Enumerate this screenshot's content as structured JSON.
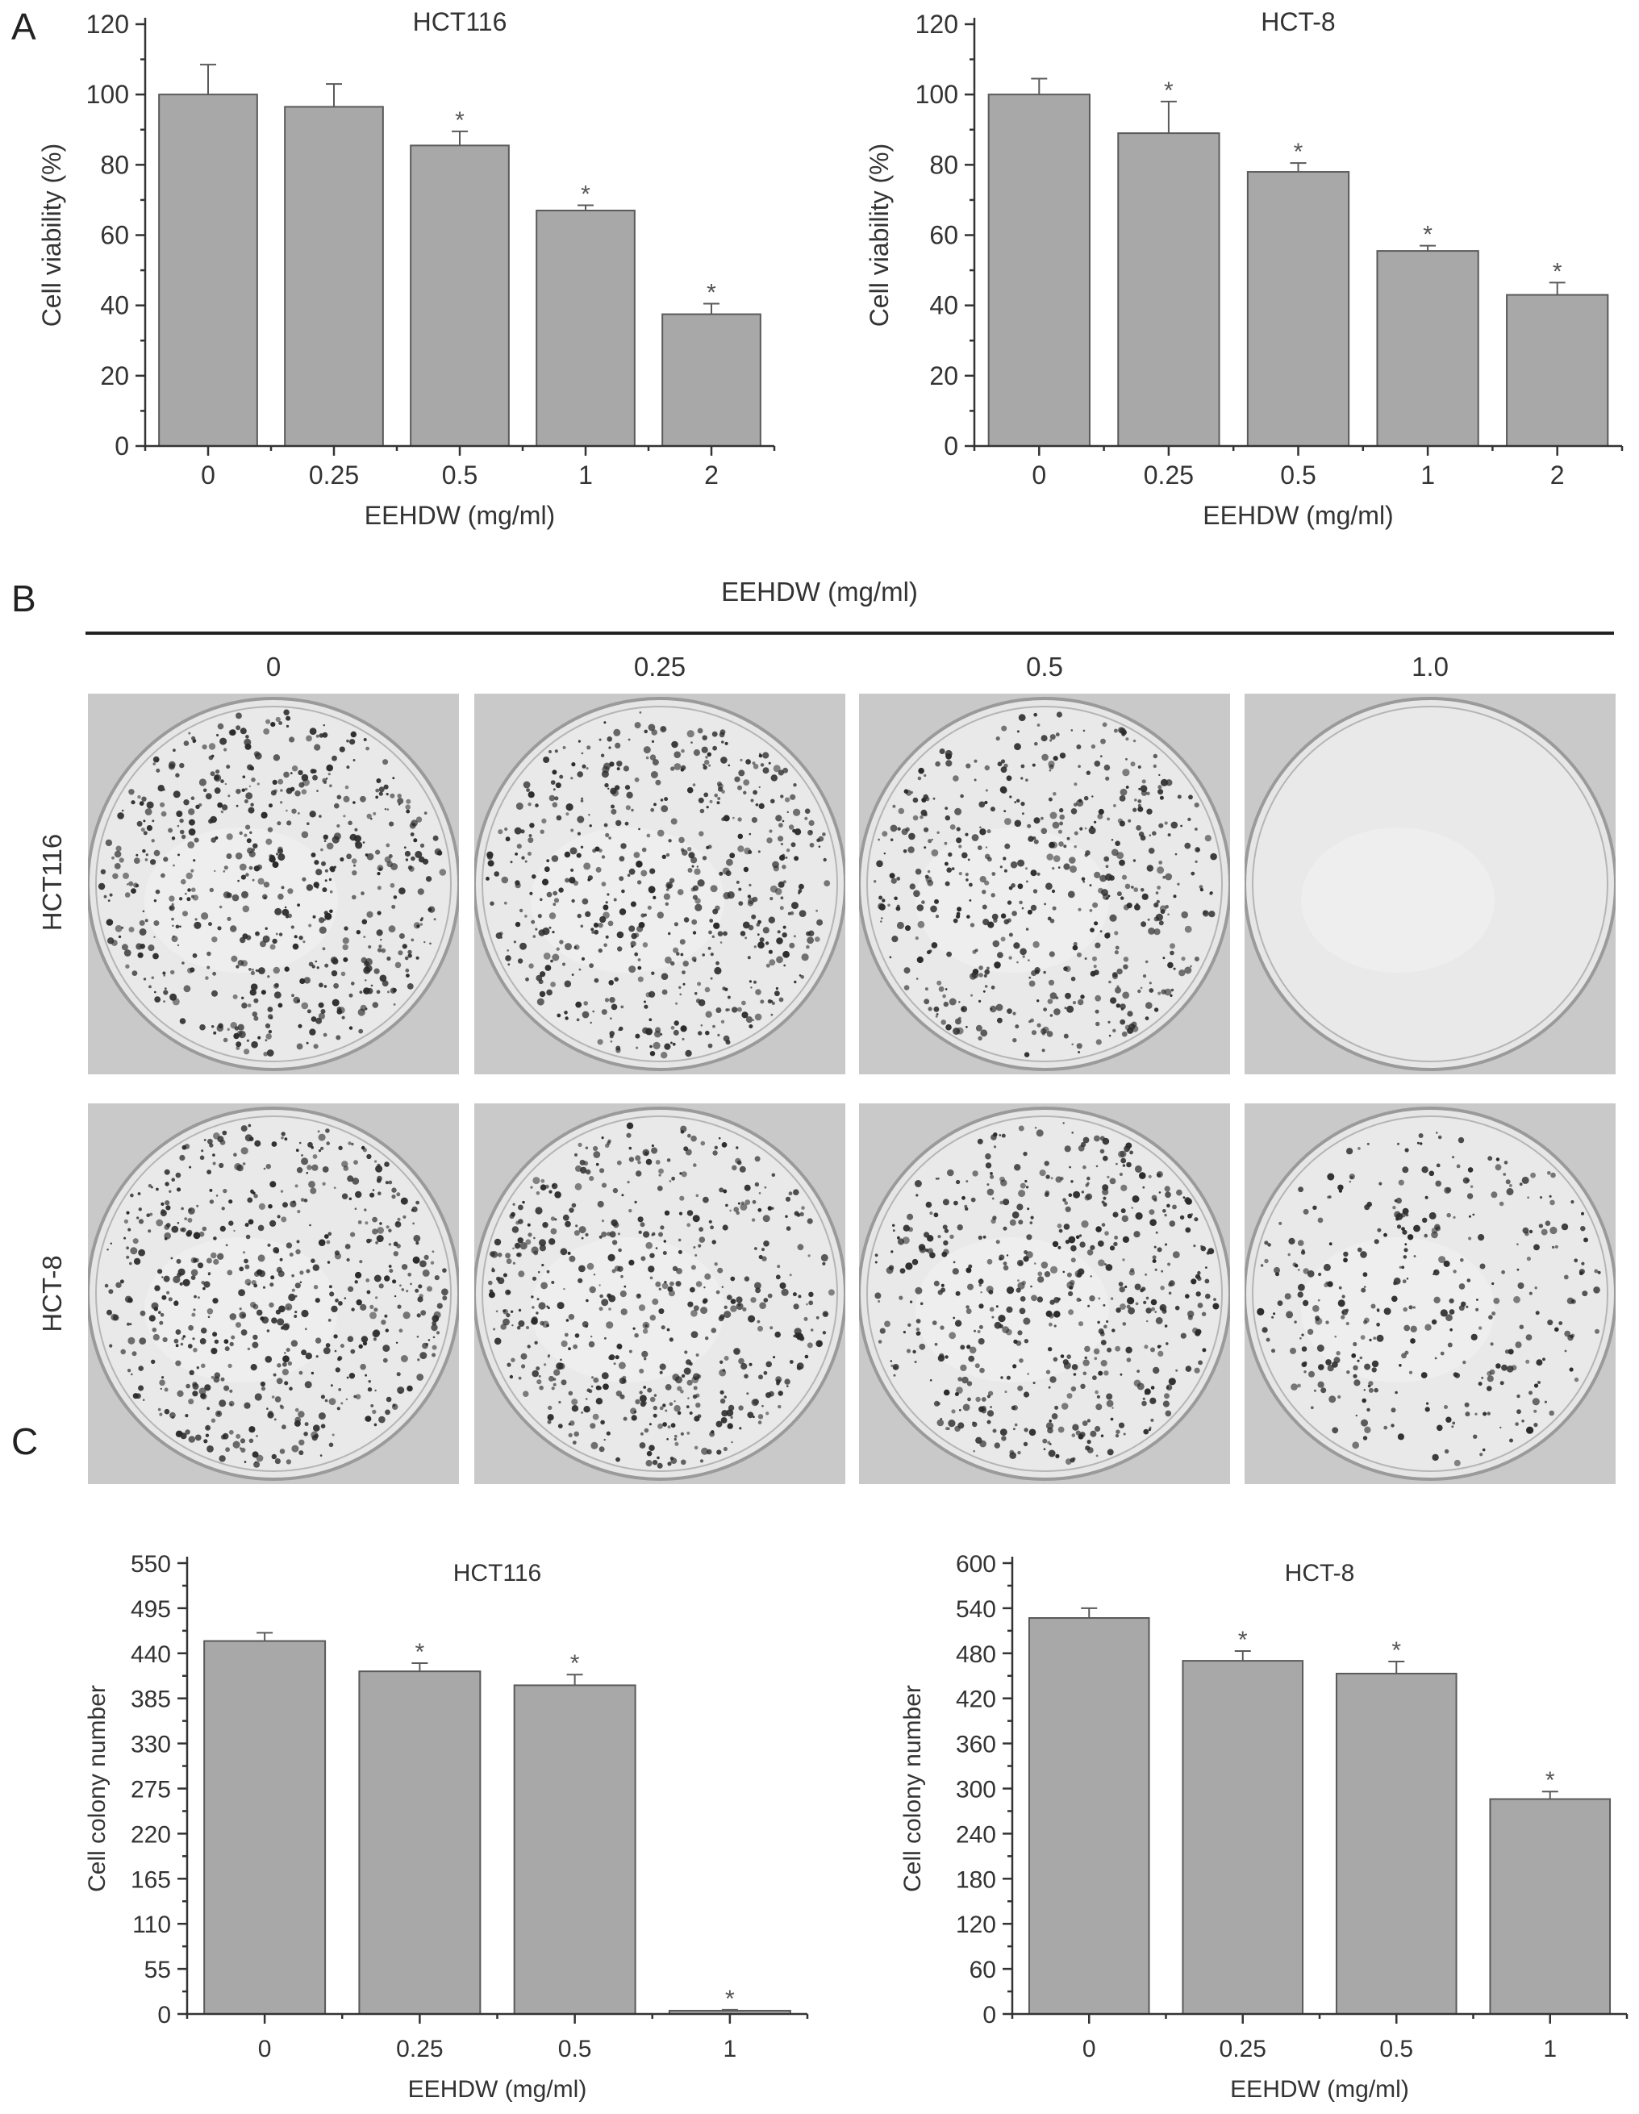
{
  "panels": {
    "A": "A",
    "B": "B",
    "C": "C"
  },
  "chart_data": [
    {
      "id": "A-HCT116",
      "type": "bar",
      "title": "HCT116",
      "xlabel": "EEHDW (mg/ml)",
      "ylabel": "Cell viability (%)",
      "categories": [
        "0",
        "0.25",
        "0.5",
        "1",
        "2"
      ],
      "values": [
        100,
        96.5,
        85.5,
        67,
        37.5
      ],
      "errors": [
        8.5,
        6.5,
        4,
        1.5,
        3
      ],
      "significant": [
        false,
        false,
        true,
        true,
        true
      ],
      "yticks": [
        0,
        20,
        40,
        60,
        80,
        100,
        120
      ],
      "ylim": [
        0,
        120
      ],
      "grid": false
    },
    {
      "id": "A-HCT8",
      "type": "bar",
      "title": "HCT-8",
      "xlabel": "EEHDW (mg/ml)",
      "ylabel": "Cell viability (%)",
      "categories": [
        "0",
        "0.25",
        "0.5",
        "1",
        "2"
      ],
      "values": [
        100,
        89,
        78,
        55.5,
        43
      ],
      "errors": [
        4.5,
        9,
        2.5,
        1.5,
        3.5
      ],
      "significant": [
        false,
        true,
        true,
        true,
        true
      ],
      "yticks": [
        0,
        20,
        40,
        60,
        80,
        100,
        120
      ],
      "ylim": [
        0,
        120
      ],
      "grid": false
    },
    {
      "id": "C-HCT116",
      "type": "bar",
      "title": "HCT116",
      "xlabel": "EEHDW (mg/ml)",
      "ylabel": "Cell colony number",
      "categories": [
        "0",
        "0.25",
        "0.5",
        "1"
      ],
      "values": [
        455,
        418,
        401,
        4
      ],
      "errors": [
        10,
        10,
        13,
        1
      ],
      "significant": [
        false,
        true,
        true,
        true
      ],
      "yticks": [
        0,
        55,
        110,
        165,
        220,
        275,
        330,
        385,
        440,
        495,
        550
      ],
      "ylim": [
        0,
        550
      ],
      "grid": false
    },
    {
      "id": "C-HCT8",
      "type": "bar",
      "title": "HCT-8",
      "xlabel": "EEHDW (mg/ml)",
      "ylabel": "Cell colony number",
      "categories": [
        "0",
        "0.25",
        "0.5",
        "1"
      ],
      "values": [
        527,
        470,
        453,
        286
      ],
      "errors": [
        13,
        13,
        16,
        10
      ],
      "significant": [
        false,
        true,
        true,
        true
      ],
      "yticks": [
        0,
        60,
        120,
        180,
        240,
        300,
        360,
        420,
        480,
        540,
        600
      ],
      "ylim": [
        0,
        600
      ],
      "grid": false
    }
  ],
  "significance_marker": "*",
  "colony_panel": {
    "header": "EEHDW (mg/ml)",
    "columns": [
      "0",
      "0.25",
      "0.5",
      "1.0"
    ],
    "rows": [
      "HCT116",
      "HCT-8"
    ],
    "colony_density": [
      [
        1.0,
        0.95,
        0.9,
        0.0
      ],
      [
        1.0,
        0.95,
        0.92,
        0.6
      ]
    ]
  }
}
